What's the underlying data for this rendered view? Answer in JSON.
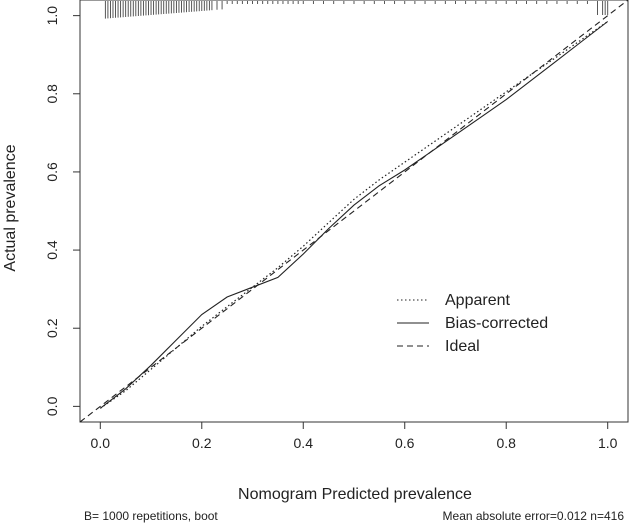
{
  "chart_data": {
    "type": "line",
    "title": "",
    "xlabel": "Nomogram Predicted prevalence",
    "ylabel": "Actual prevalence",
    "xlim": [
      -0.04,
      1.04
    ],
    "ylim": [
      -0.04,
      1.04
    ],
    "x_ticks": [
      0.0,
      0.2,
      0.4,
      0.6,
      0.8,
      1.0
    ],
    "x_tick_labels": [
      "0.0",
      "0.2",
      "0.4",
      "0.6",
      "0.8",
      "1.0"
    ],
    "y_ticks": [
      0.0,
      0.2,
      0.4,
      0.6,
      0.8,
      1.0
    ],
    "y_tick_labels": [
      "0.0",
      "0.2",
      "0.4",
      "0.6",
      "0.8",
      "1.0"
    ],
    "grid": false,
    "legend_position": "bottom-right",
    "series": [
      {
        "name": "Apparent",
        "style": "dotted",
        "x": [
          0.0,
          0.05,
          0.1,
          0.15,
          0.2,
          0.25,
          0.3,
          0.35,
          0.4,
          0.45,
          0.5,
          0.55,
          0.6,
          0.65,
          0.7,
          0.75,
          0.8,
          0.85,
          0.9,
          0.95,
          1.0
        ],
        "y": [
          -0.005,
          0.04,
          0.095,
          0.15,
          0.205,
          0.255,
          0.305,
          0.355,
          0.41,
          0.47,
          0.53,
          0.58,
          0.625,
          0.67,
          0.715,
          0.76,
          0.805,
          0.85,
          0.895,
          0.94,
          0.985
        ]
      },
      {
        "name": "Bias-corrected",
        "style": "solid",
        "x": [
          0.0,
          0.05,
          0.1,
          0.15,
          0.2,
          0.25,
          0.3,
          0.35,
          0.4,
          0.45,
          0.5,
          0.55,
          0.6,
          0.65,
          0.7,
          0.75,
          0.8,
          0.85,
          0.9,
          0.95,
          1.0
        ],
        "y": [
          -0.005,
          0.045,
          0.105,
          0.17,
          0.235,
          0.28,
          0.305,
          0.33,
          0.39,
          0.455,
          0.515,
          0.565,
          0.605,
          0.65,
          0.695,
          0.74,
          0.785,
          0.835,
          0.885,
          0.935,
          0.985
        ]
      },
      {
        "name": "Ideal",
        "style": "dashed",
        "x": [
          -0.04,
          1.04
        ],
        "y": [
          -0.04,
          1.04
        ]
      }
    ],
    "rug_x": [
      0.01,
      0.015,
      0.02,
      0.025,
      0.03,
      0.035,
      0.04,
      0.045,
      0.05,
      0.055,
      0.06,
      0.065,
      0.07,
      0.075,
      0.08,
      0.085,
      0.09,
      0.095,
      0.1,
      0.105,
      0.11,
      0.115,
      0.12,
      0.125,
      0.13,
      0.135,
      0.14,
      0.145,
      0.15,
      0.155,
      0.16,
      0.165,
      0.17,
      0.175,
      0.18,
      0.185,
      0.19,
      0.195,
      0.2,
      0.205,
      0.21,
      0.215,
      0.22,
      0.23,
      0.24,
      0.25,
      0.26,
      0.27,
      0.28,
      0.29,
      0.3,
      0.31,
      0.32,
      0.33,
      0.34,
      0.35,
      0.36,
      0.37,
      0.38,
      0.39,
      0.4,
      0.42,
      0.44,
      0.46,
      0.48,
      0.5,
      0.52,
      0.54,
      0.56,
      0.58,
      0.6,
      0.62,
      0.64,
      0.66,
      0.68,
      0.7,
      0.72,
      0.74,
      0.76,
      0.78,
      0.8,
      0.82,
      0.84,
      0.86,
      0.88,
      0.9,
      0.92,
      0.94,
      0.96,
      0.98,
      0.99,
      0.995,
      1.0
    ],
    "footer_left": "B= 1000 repetitions, boot",
    "footer_right": "Mean absolute error=0.012 n=416"
  }
}
